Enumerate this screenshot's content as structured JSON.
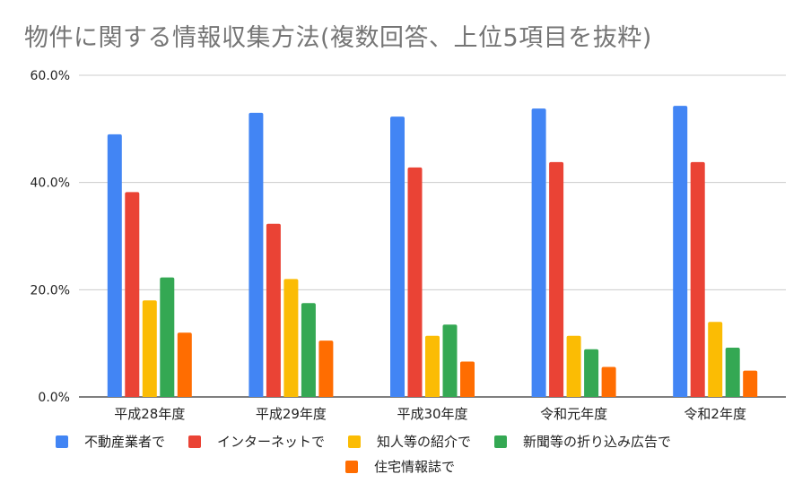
{
  "chart_data": {
    "type": "bar",
    "title": "物件に関する情報収集方法(複数回答、上位5項目を抜粋)",
    "categories": [
      "平成28年度",
      "平成29年度",
      "平成30年度",
      "令和元年度",
      "令和2年度"
    ],
    "series": [
      {
        "name": "不動産業者で",
        "color": "#4285f4",
        "values": [
          49.0,
          53.0,
          52.3,
          53.8,
          54.3
        ]
      },
      {
        "name": "インターネットで",
        "color": "#ea4335",
        "values": [
          38.2,
          32.3,
          42.8,
          43.8,
          43.8
        ]
      },
      {
        "name": "知人等の紹介で",
        "color": "#fbbc04",
        "values": [
          18.0,
          22.0,
          11.4,
          11.4,
          14.0
        ]
      },
      {
        "name": "新聞等の折り込み広告で",
        "color": "#34a853",
        "values": [
          22.3,
          17.5,
          13.5,
          8.9,
          9.2
        ]
      },
      {
        "name": "住宅情報誌で",
        "color": "#ff6d01",
        "values": [
          12.0,
          10.5,
          6.6,
          5.6,
          4.9
        ]
      }
    ],
    "ylim": [
      0,
      60
    ],
    "yticks": [
      "0.0%",
      "20.0%",
      "40.0%",
      "60.0%"
    ],
    "ytick_values": [
      0,
      20,
      40,
      60
    ],
    "grid": true,
    "legend": "bottom"
  }
}
